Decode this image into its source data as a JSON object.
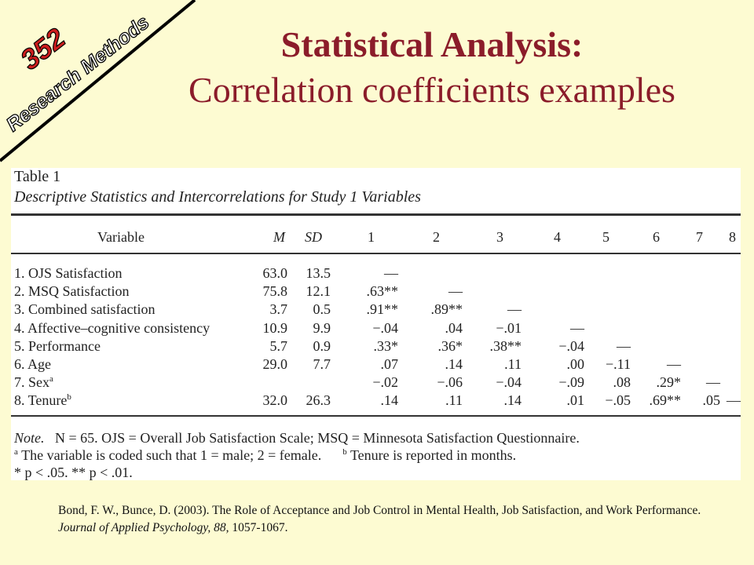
{
  "badge": {
    "number": "352",
    "course": "Research Methods"
  },
  "title": {
    "line1": "Statistical Analysis:",
    "line2": "Correlation coefficients examples"
  },
  "table": {
    "label": "Table 1",
    "caption": "Descriptive Statistics and Intercorrelations for Study 1 Variables",
    "headers": [
      "Variable",
      "M",
      "SD",
      "1",
      "2",
      "3",
      "4",
      "5",
      "6",
      "7",
      "8"
    ],
    "rows": [
      {
        "label": "1.  OJS Satisfaction",
        "sup": "",
        "m": "63.0",
        "sd": "13.5",
        "c": [
          "—",
          "",
          "",
          "",
          "",
          "",
          "",
          ""
        ]
      },
      {
        "label": "2.  MSQ Satisfaction",
        "sup": "",
        "m": "75.8",
        "sd": "12.1",
        "c": [
          ".63**",
          "—",
          "",
          "",
          "",
          "",
          "",
          ""
        ]
      },
      {
        "label": "3.  Combined satisfaction",
        "sup": "",
        "m": "3.7",
        "sd": "0.5",
        "c": [
          ".91**",
          ".89**",
          "—",
          "",
          "",
          "",
          "",
          ""
        ]
      },
      {
        "label": "4.  Affective–cognitive consistency",
        "sup": "",
        "m": "10.9",
        "sd": "9.9",
        "c": [
          "−.04",
          ".04",
          "−.01",
          "—",
          "",
          "",
          "",
          ""
        ]
      },
      {
        "label": "5.  Performance",
        "sup": "",
        "m": "5.7",
        "sd": "0.9",
        "c": [
          ".33*",
          ".36*",
          ".38**",
          "−.04",
          "—",
          "",
          "",
          ""
        ]
      },
      {
        "label": "6.  Age",
        "sup": "",
        "m": "29.0",
        "sd": "7.7",
        "c": [
          ".07",
          ".14",
          ".11",
          ".00",
          "−.11",
          "—",
          "",
          ""
        ]
      },
      {
        "label": "7.  Sex",
        "sup": "a",
        "m": "",
        "sd": "",
        "c": [
          "−.02",
          "−.06",
          "−.04",
          "−.09",
          ".08",
          ".29*",
          "—",
          ""
        ]
      },
      {
        "label": "8.  Tenure",
        "sup": "b",
        "m": "32.0",
        "sd": "26.3",
        "c": [
          ".14",
          ".11",
          ".14",
          ".01",
          "−.05",
          ".69**",
          ".05",
          "—"
        ]
      }
    ],
    "notes": {
      "note_word": "Note.",
      "line1": "N = 65. OJS = Overall Job Satisfaction Scale; MSQ = Minnesota Satisfaction Questionnaire.",
      "line2_sup": "a",
      "line2a": "The variable is coded such that 1 = male; 2 = female.",
      "line2_sup_b": "b",
      "line2b": "Tenure is reported in months.",
      "line3": "* p < .05.    ** p < .01."
    }
  },
  "citation": {
    "authors": "Bond, F. W., Bunce, D. (2003). The Role of Acceptance and Job Control in Mental Health, Job Satisfaction, and Work Performance. ",
    "journal": "Journal of Applied Psychology, 88,",
    "pages": " 1057-1067."
  },
  "colors": {
    "background": "#fdfbd2",
    "title": "#8b1c2a",
    "badge_number": "#cc1d1d"
  }
}
